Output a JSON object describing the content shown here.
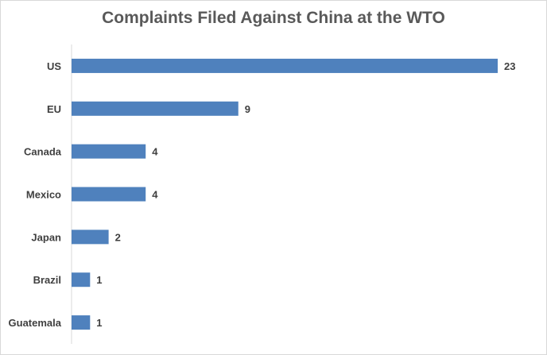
{
  "chart_data": {
    "type": "bar",
    "orientation": "horizontal",
    "title": "Complaints Filed Against China at the WTO",
    "categories": [
      "US",
      "EU",
      "Canada",
      "Mexico",
      "Japan",
      "Brazil",
      "Guatemala"
    ],
    "values": [
      23,
      9,
      4,
      4,
      2,
      1,
      1
    ],
    "xlabel": "",
    "ylabel": "",
    "xlim": [
      0,
      23
    ],
    "grid": false,
    "legend": "none",
    "data_labels": true,
    "bar_color": "#4f81bd"
  }
}
